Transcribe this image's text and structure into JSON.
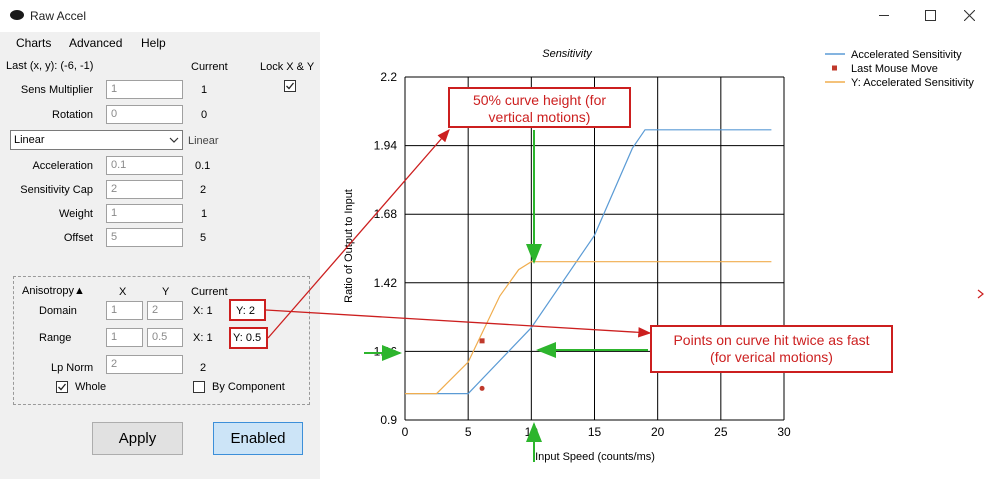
{
  "window": {
    "title": "Raw Accel"
  },
  "menu": [
    "Charts",
    "Advanced",
    "Help"
  ],
  "panel": {
    "last_xy": "Last (x, y): (-6, -1)",
    "current_header": "Current",
    "lock_label": "Lock X & Y",
    "lock_checked": true,
    "sens_label": "Sens Multiplier",
    "sens_value": "1",
    "sens_current": "1",
    "rotation_label": "Rotation",
    "rotation_value": "0",
    "rotation_current": "0",
    "mode_selected": "Linear",
    "mode_current": "Linear",
    "accel_label": "Acceleration",
    "accel_value": "0.1",
    "accel_current": "0.1",
    "cap_label": "Sensitivity Cap",
    "cap_value": "2",
    "cap_current": "2",
    "weight_label": "Weight",
    "weight_value": "1",
    "weight_current": "1",
    "offset_label": "Offset",
    "offset_value": "5",
    "offset_current": "5"
  },
  "anisotropy": {
    "title": "Anisotropy▲",
    "x_header": "X",
    "y_header": "Y",
    "current_header": "Current",
    "domain_label": "Domain",
    "domain_x": "1",
    "domain_y": "2",
    "domain_cur_x": "X: 1",
    "domain_cur_y": "Y: 2",
    "range_label": "Range",
    "range_x": "1",
    "range_y": "0.5",
    "range_cur_x": "X: 1",
    "range_cur_y": "Y: 0.5",
    "lpnorm_label": "Lp Norm",
    "lpnorm_value": "2",
    "lpnorm_current": "2",
    "whole_label": "Whole",
    "whole_checked": true,
    "bycomp_label": "By Component",
    "bycomp_checked": false
  },
  "buttons": {
    "apply": "Apply",
    "enabled": "Enabled"
  },
  "annotations": {
    "top_line1": "50% curve height (for",
    "top_line2": "vertical motions)",
    "right_line1": "Points on curve hit twice as fast",
    "right_line2": "(for verical motions)"
  },
  "colors": {
    "series_blue": "#5b9bd5",
    "series_orange": "#f0ad4e",
    "mouse_red": "#c0392b",
    "annotation_red": "#cc1f1f",
    "arrow_green": "#2db52d"
  },
  "chart_data": {
    "type": "line",
    "title": "Sensitivity",
    "xlabel": "Input Speed (counts/ms)",
    "ylabel": "Ratio of Output to Input",
    "xlim": [
      0,
      30
    ],
    "ylim": [
      0.9,
      2.2
    ],
    "x_ticks": [
      "0",
      "5",
      "10",
      "15",
      "20",
      "25",
      "30"
    ],
    "y_ticks": [
      "0.9",
      "1.16",
      "1.42",
      "1.68",
      "1.94",
      "2.2"
    ],
    "grid": true,
    "legend_position": "top-right",
    "series": [
      {
        "name": "Accelerated Sensitivity",
        "color": "#5b9bd5",
        "points": [
          [
            0,
            1.0
          ],
          [
            5,
            1.0
          ],
          [
            10,
            1.25
          ],
          [
            15,
            1.6
          ],
          [
            18,
            1.93
          ],
          [
            19,
            2.0
          ],
          [
            29,
            2.0
          ]
        ]
      },
      {
        "name": "Last Mouse Move",
        "color": "#c0392b",
        "marker": true,
        "points": [
          [
            6.1,
            1.2
          ]
        ]
      },
      {
        "name": "Y: Accelerated Sensitivity",
        "color": "#f0ad4e",
        "points": [
          [
            0,
            1.0
          ],
          [
            2.5,
            1.0
          ],
          [
            5,
            1.12
          ],
          [
            7.5,
            1.37
          ],
          [
            9,
            1.47
          ],
          [
            10,
            1.5
          ],
          [
            29,
            1.5
          ]
        ]
      }
    ],
    "extra_points": [
      {
        "x": 6.1,
        "y": 1.02,
        "color": "#c0392b"
      }
    ]
  }
}
